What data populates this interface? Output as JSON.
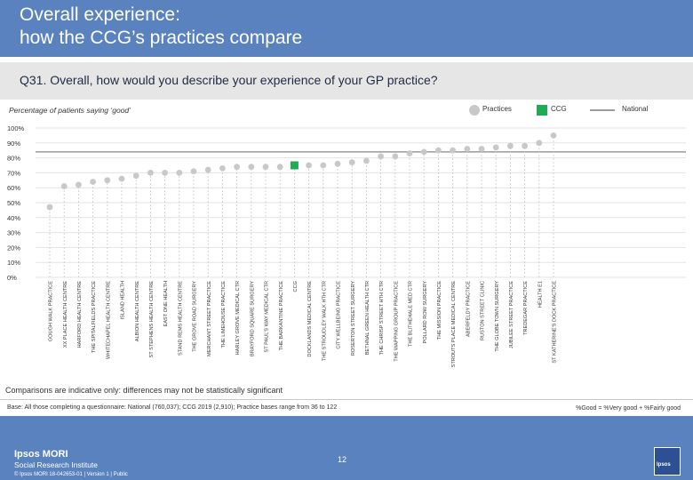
{
  "header": {
    "title_line1": "Overall experience:",
    "title_line2": "how the CCG’s practices compare"
  },
  "question": "Q31. Overall, how would you describe your experience of your GP practice?",
  "subtitle": "Percentage of patients saying ‘good’",
  "legend": {
    "practices": "Practices",
    "ccg": "CCG",
    "national": "National"
  },
  "colors": {
    "header": "#5a82be",
    "practice": "#c8c8c8",
    "ccg": "#22aa55",
    "national": "#9a9a9a"
  },
  "chart_data": {
    "type": "scatter",
    "ylim": [
      0,
      100
    ],
    "yticks": [
      "0%",
      "10%",
      "20%",
      "30%",
      "40%",
      "50%",
      "60%",
      "70%",
      "80%",
      "90%",
      "100%"
    ],
    "national": 84,
    "categories": [
      "GOUGH WALK PRACTICE",
      "XX PLACE HEALTH CENTRE",
      "HARFORD HEALTH CENTRE",
      "THE SPITALFIELDS PRACTICE",
      "WHITECHAPEL HEALTH CENTRE",
      "ISLAND HEALTH",
      "ALBION HEALTH CENTRE",
      "ST STEPHENS HEALTH CENTRE",
      "EAST ONE HEALTH",
      "STAND REMS HEALTH CENTRE",
      "THE GROVE ROAD SURGERY",
      "MERCHANT STREET PRACTICE",
      "THE LIMEHOUSE PRACTICE",
      "HARLEY GROVE MEDICAL CTR",
      "BRAYFORD SQUARE SURGERY",
      "ST PAUL'S WAY MEDICAL CTR",
      "THE BARKANTINE PRACTICE",
      "CCG",
      "DOCKLANDS MEDICAL CENTRE",
      "THE STROUDLEY WALK HTH CTR",
      "CITY WELLBEING PRACTICE",
      "ROSERTON STREET SURGERY",
      "BETHNAL GREEN HEALTH CTR",
      "THE CHRISP STREET HTH CTR",
      "THE WAPPING GROUP PRACTICE",
      "THE BLITHEHALE MED CTR",
      "POLLARD ROW SURGERY",
      "THE MISSION PRACTICE",
      "STROUTS PLACE MEDICAL CENTRE",
      "ABERFELDY PRACTICE",
      "RUSTON STREET CLINIC",
      "THE GLOBE TOWN SURGERY",
      "JUBILEE STREET PRACTICE",
      "TREDEGAR PRACTICE",
      "HEALTH E1",
      "ST KATHERINE'S DOCK PRACTICE"
    ],
    "values": [
      47,
      61,
      62,
      64,
      65,
      66,
      68,
      70,
      70,
      70,
      71,
      72,
      73,
      74,
      74,
      74,
      74,
      75,
      75,
      75,
      76,
      77,
      78,
      81,
      81,
      83,
      84,
      85,
      85,
      86,
      86,
      87,
      88,
      88,
      90,
      95
    ],
    "highlight": "CCG"
  },
  "note": "Comparisons are indicative only: differences may not be statistically significant",
  "base": "Base: All those completing a questionnaire: National (760,037); CCG 2019 (2,910); Practice bases range from 36 to 122",
  "formula": "%Good = %Very good + %Fairly good",
  "footer": {
    "brand": "Ipsos MORI",
    "institute": "Social Research Institute",
    "meta": "© Ipsos MORI     18-042653-01 | Version 1 | Public",
    "page": "12",
    "logo": "Ipsos"
  }
}
